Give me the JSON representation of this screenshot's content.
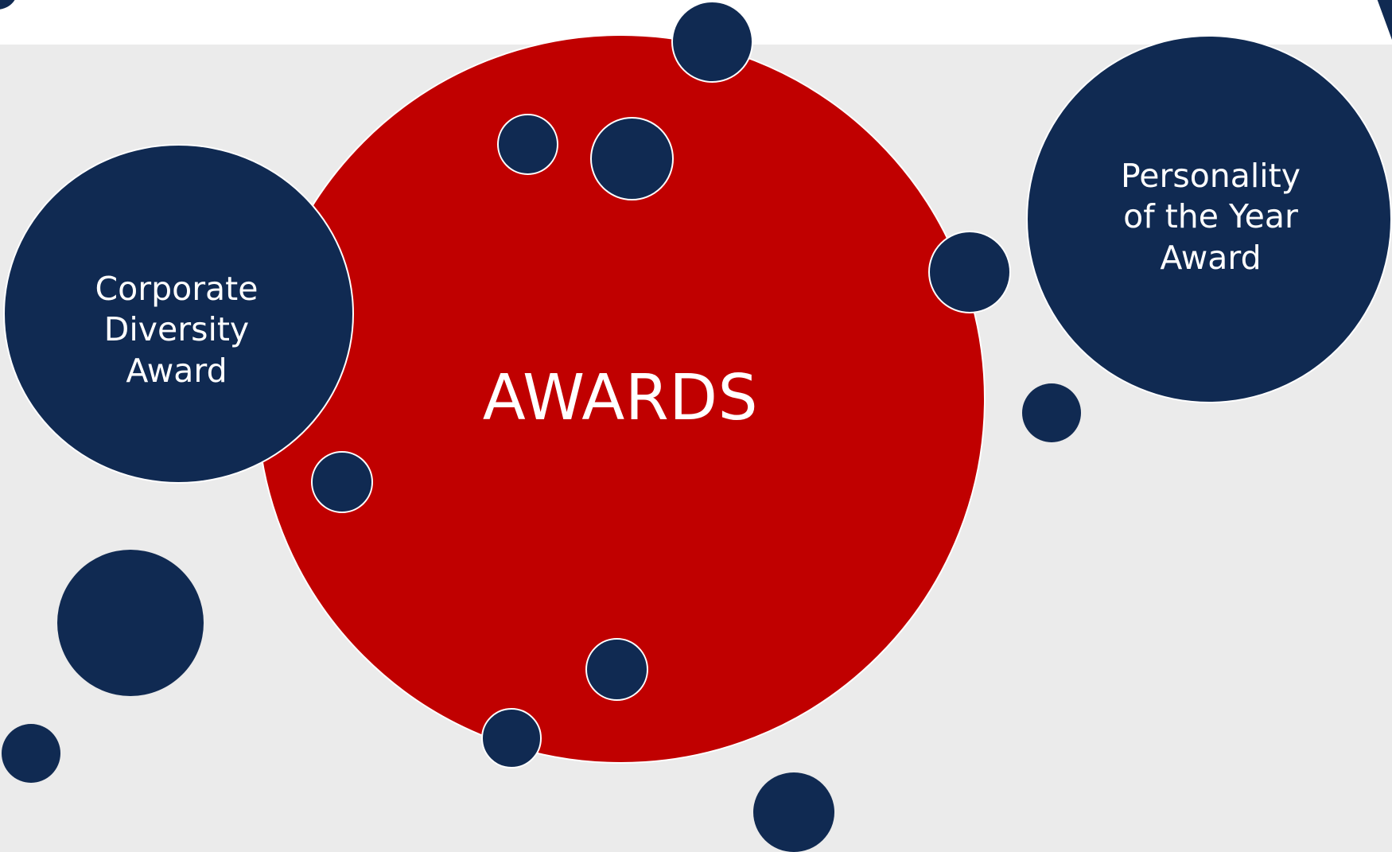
{
  "center": {
    "label": "AWARDS"
  },
  "awards": [
    {
      "label": "Corporate\nDiversity\nAward"
    },
    {
      "label": "Personality\nof the Year\nAward"
    }
  ],
  "colors": {
    "page_background": "#ebebeb",
    "top_band": "#ffffff",
    "center_circle": "#c00000",
    "satellite_circle": "#102a52",
    "text": "#ffffff",
    "outline": "#ffffff"
  }
}
